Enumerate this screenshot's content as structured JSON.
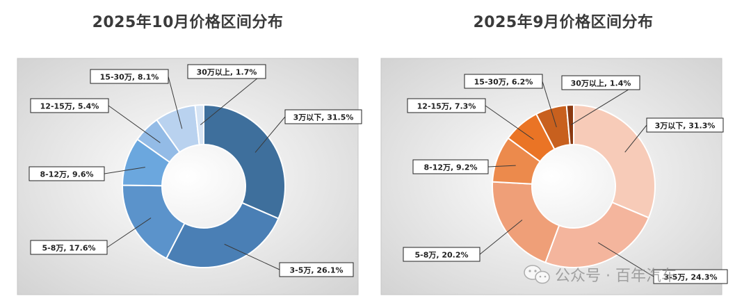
{
  "colors": {
    "oct": [
      "#3e6f9c",
      "#4a7fb5",
      "#5b93cb",
      "#6ba7de",
      "#93bbe6",
      "#b9d2ef",
      "#d6e4f4"
    ],
    "sep": [
      "#f7cbb8",
      "#f4b59d",
      "#ef9f78",
      "#ec8a4c",
      "#ea7425",
      "#c8601e",
      "#8b3a12"
    ],
    "title_text": "#3a3a3a",
    "label_bg": "#ffffff",
    "label_border": "#222222"
  },
  "chart_data": [
    {
      "type": "pie",
      "variant": "donut",
      "title": "2025年10月价格区间分布",
      "categories": [
        "3万以下",
        "3-5万",
        "5-8万",
        "8-12万",
        "12-15万",
        "15-30万",
        "30万以上"
      ],
      "values": [
        31.5,
        26.1,
        17.6,
        9.6,
        5.4,
        8.1,
        1.7
      ],
      "labels": [
        "3万以下, 31.5%",
        "3-5万, 26.1%",
        "5-8万, 17.6%",
        "8-12万, 9.6%",
        "12-15万, 5.4%",
        "15-30万, 8.1%",
        "30万以上, 1.7%"
      ],
      "unit": "%"
    },
    {
      "type": "pie",
      "variant": "donut",
      "title": "2025年9月价格区间分布",
      "categories": [
        "3万以下",
        "3-5万",
        "5-8万",
        "8-12万",
        "12-15万",
        "15-30万",
        "30万以上"
      ],
      "values": [
        31.3,
        24.3,
        20.2,
        9.2,
        7.3,
        6.2,
        1.4
      ],
      "labels": [
        "3万以下, 31.3%",
        "3-5万, 24.3%",
        "5-8万, 20.2%",
        "8-12万, 9.2%",
        "12-15万, 7.3%",
        "15-30万, 6.2%",
        "30万以上, 1.4%"
      ],
      "unit": "%"
    }
  ],
  "watermark": {
    "text": "公众号 · 百年汽车",
    "icon": "wechat-icon"
  }
}
